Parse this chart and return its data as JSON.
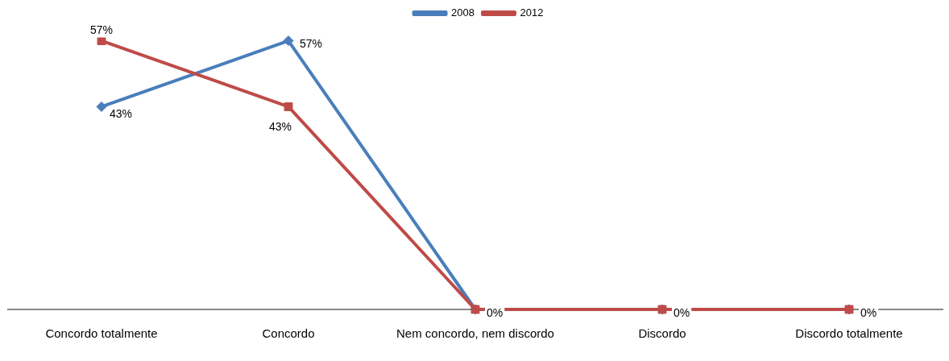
{
  "chart_data": {
    "type": "line",
    "categories": [
      "Concordo totalmente",
      "Concordo",
      "Nem concordo, nem discordo",
      "Discordo",
      "Discordo totalmente"
    ],
    "series": [
      {
        "name": "2008",
        "color": "#4a7ebb",
        "marker": "diamond",
        "values": [
          43,
          57,
          0,
          0,
          0
        ],
        "value_labels": [
          "43%",
          "57%",
          null,
          null,
          null
        ]
      },
      {
        "name": "2012",
        "color": "#be4b48",
        "marker": "square",
        "values": [
          57,
          43,
          0,
          0,
          0
        ],
        "value_labels": [
          "57%",
          "43%",
          "0%",
          "0%",
          "0%"
        ]
      }
    ],
    "legend": "top",
    "grid": false,
    "tick_labels": "x"
  }
}
